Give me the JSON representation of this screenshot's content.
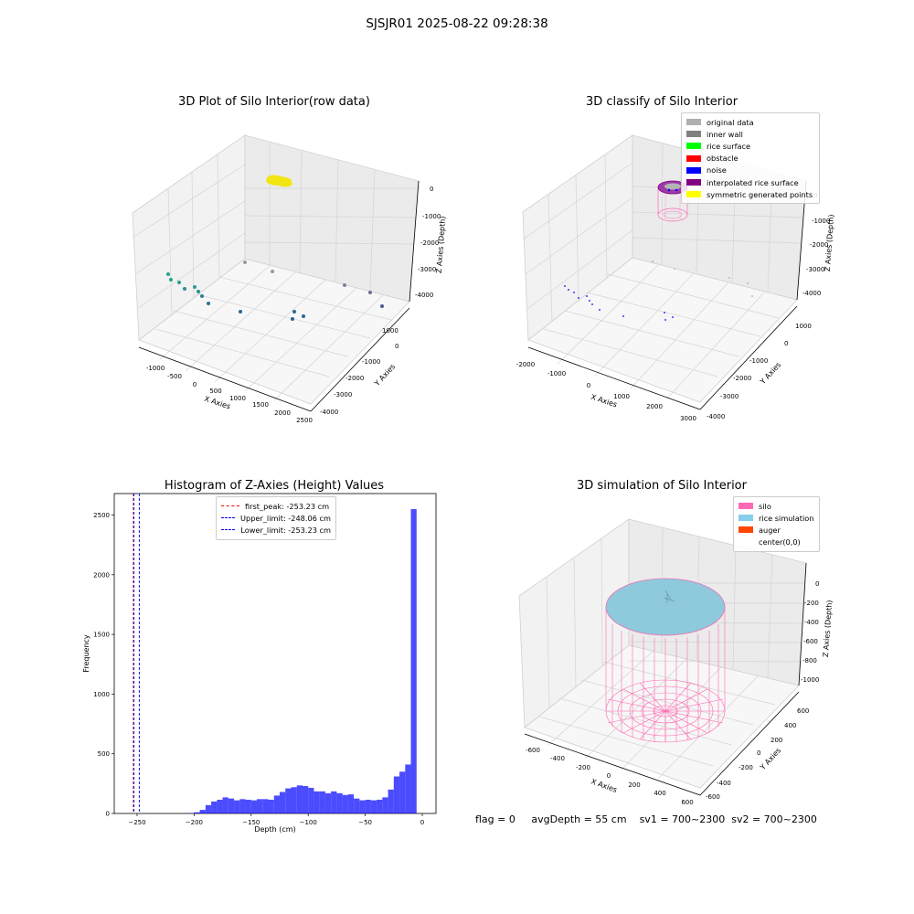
{
  "figure_title": "SJSJR01 2025-08-22 09:28:38",
  "panels": {
    "raw": {
      "title": "3D Plot of Silo Interior(row data)",
      "xlabel": "X Axies",
      "ylabel": "Y Axies",
      "zlabel": "Z Axies (Depth)",
      "xticks": [
        "-1000",
        "-500",
        "0",
        "500",
        "1000",
        "1500",
        "2000",
        "2500"
      ],
      "yticks": [
        "1000",
        "0",
        "-1000",
        "-2000",
        "-3000",
        "-4000"
      ],
      "zticks": [
        "0",
        "-1000",
        "-2000",
        "-3000",
        "-4000"
      ]
    },
    "classify": {
      "title": "3D classify of Silo Interior",
      "xlabel": "X Axies",
      "ylabel": "Y Axies",
      "zlabel": "Z Axies (Depth)",
      "xticks": [
        "-2000",
        "-1000",
        "0",
        "1000",
        "2000",
        "3000"
      ],
      "yticks": [
        "1000",
        "0",
        "-1000",
        "-2000",
        "-3000",
        "-4000"
      ],
      "zticks": [
        "0",
        "-1000",
        "-2000",
        "-3000",
        "-4000"
      ],
      "legend": [
        {
          "label": "original data",
          "color": "#b0b0b0"
        },
        {
          "label": "inner wall",
          "color": "#808080"
        },
        {
          "label": "rice surface",
          "color": "#00ff00"
        },
        {
          "label": "obstacle",
          "color": "#ff0000"
        },
        {
          "label": "noise",
          "color": "#0000ff"
        },
        {
          "label": "interpolated rice surface",
          "color": "#800080"
        },
        {
          "label": "symmetric generated points",
          "color": "#ffff00"
        }
      ]
    },
    "simulation": {
      "title": "3D simulation of Silo Interior",
      "xlabel": "X Axies",
      "ylabel": "Y Axies",
      "zlabel": "Z Axies (Depth)",
      "xticks": [
        "-600",
        "-400",
        "-200",
        "0",
        "200",
        "400",
        "600"
      ],
      "yticks": [
        "600",
        "400",
        "200",
        "0",
        "-200",
        "-400",
        "-600"
      ],
      "zticks": [
        "0",
        "-200",
        "-400",
        "-600",
        "-800",
        "-1000"
      ],
      "legend": [
        {
          "label": "silo",
          "color": "#ff69b4"
        },
        {
          "label": "rice simulation",
          "color": "#87ceeb"
        },
        {
          "label": "auger",
          "color": "#ff4500"
        },
        {
          "label": "center(0,0)",
          "color": "#ffffff"
        }
      ]
    }
  },
  "chart_data": {
    "type": "bar",
    "title": "Histogram of Z-Axies (Height) Values",
    "xlabel": "Depth (cm)",
    "ylabel": "Frequency",
    "xlim": [
      -270,
      12
    ],
    "ylim": [
      0,
      2680
    ],
    "xticks": [
      -250,
      -200,
      -150,
      -100,
      -50,
      0
    ],
    "yticks": [
      0,
      500,
      1000,
      1500,
      2000,
      2500
    ],
    "bin_width": 5,
    "bin_starts": [
      -205,
      -200,
      -195,
      -190,
      -185,
      -180,
      -175,
      -170,
      -165,
      -160,
      -155,
      -150,
      -145,
      -140,
      -135,
      -130,
      -125,
      -120,
      -115,
      -110,
      -105,
      -100,
      -95,
      -90,
      -85,
      -80,
      -75,
      -70,
      -65,
      -60,
      -55,
      -50,
      -45,
      -40,
      -35,
      -30,
      -25,
      -20,
      -15,
      -10,
      -5
    ],
    "values": [
      3,
      10,
      30,
      70,
      100,
      115,
      135,
      125,
      110,
      120,
      115,
      110,
      120,
      120,
      115,
      150,
      180,
      210,
      220,
      235,
      230,
      215,
      185,
      185,
      170,
      185,
      170,
      155,
      160,
      125,
      110,
      115,
      110,
      115,
      135,
      200,
      310,
      350,
      410,
      2550,
      0
    ],
    "bar_color": "#0000ff",
    "series": [
      {
        "name": "",
        "values": []
      }
    ],
    "vlines": [
      {
        "label": "first_peak: -253.23 cm",
        "x": -253.23,
        "color": "#ff0000"
      },
      {
        "label": "Upper_limit: -248.06 cm",
        "x": -248.06,
        "color": "#0000ff"
      },
      {
        "label": "Lower_limit: -253.23 cm",
        "x": -253.23,
        "color": "#0000ff"
      }
    ],
    "legend_position": "upper center"
  },
  "footer": {
    "flag": "flag = 0",
    "avg": "avgDepth = 55 cm",
    "sv1": "sv1 = 700~2300",
    "sv2": "sv2 = 700~2300"
  }
}
